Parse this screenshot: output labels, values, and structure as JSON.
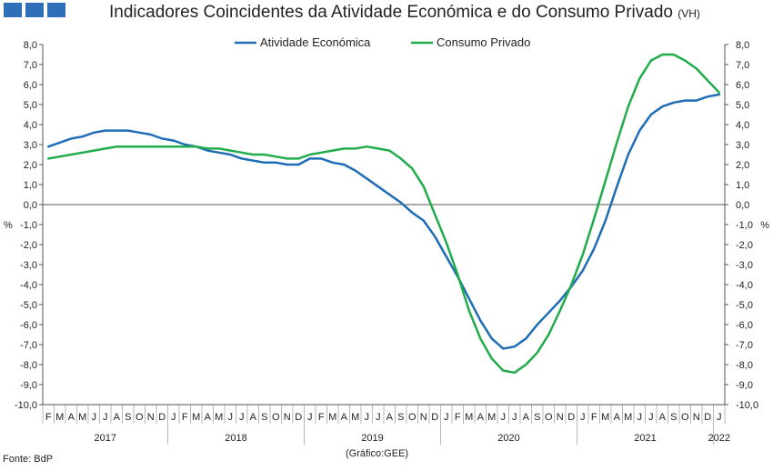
{
  "header": {
    "title": "Indicadores Coincidentes da Atividade Económica e do Consumo Privado",
    "unit": "(VH)",
    "logo_color": "#2f6fb7"
  },
  "footer": {
    "source": "Fonte: BdP",
    "credit": "(Gráfico:GEE)"
  },
  "chart_data": {
    "type": "line",
    "y_axis_unit_label": "%",
    "ylim": [
      -10,
      8
    ],
    "y_ticks": [
      "8,0",
      "7,0",
      "6,0",
      "5,0",
      "4,0",
      "3,0",
      "2,0",
      "1,0",
      "0,0",
      "-1,0",
      "-2,0",
      "-3,0",
      "-4,0",
      "-5,0",
      "-6,0",
      "-7,0",
      "-8,0",
      "-9,0",
      "-10,0"
    ],
    "x_months": [
      "F",
      "M",
      "A",
      "M",
      "J",
      "J",
      "A",
      "S",
      "O",
      "N",
      "D",
      "J",
      "F",
      "M",
      "A",
      "M",
      "J",
      "J",
      "A",
      "S",
      "O",
      "N",
      "D",
      "J",
      "F",
      "M",
      "A",
      "M",
      "J",
      "J",
      "A",
      "S",
      "O",
      "N",
      "D",
      "J",
      "F",
      "M",
      "A",
      "M",
      "J",
      "J",
      "A",
      "S",
      "O",
      "N",
      "D",
      "J",
      "F",
      "M",
      "A",
      "M",
      "J",
      "J",
      "A",
      "S",
      "O",
      "N",
      "D",
      "J"
    ],
    "x_years": [
      "2017",
      "2018",
      "2019",
      "2020",
      "2021",
      "2022"
    ],
    "x_range": [
      "2017-02",
      "2022-01"
    ],
    "grid": false,
    "legend_position": "top-center",
    "series": [
      {
        "name": "Atividade Económica",
        "color": "#1f6db5",
        "values": [
          2.9,
          3.1,
          3.3,
          3.4,
          3.6,
          3.7,
          3.7,
          3.7,
          3.6,
          3.5,
          3.3,
          3.2,
          3.0,
          2.9,
          2.7,
          2.6,
          2.5,
          2.3,
          2.2,
          2.1,
          2.1,
          2.0,
          2.0,
          2.3,
          2.3,
          2.1,
          2.0,
          1.7,
          1.3,
          0.9,
          0.5,
          0.1,
          -0.4,
          -0.8,
          -1.6,
          -2.6,
          -3.6,
          -4.7,
          -5.8,
          -6.7,
          -7.2,
          -7.1,
          -6.7,
          -6.0,
          -5.4,
          -4.8,
          -4.1,
          -3.3,
          -2.2,
          -0.8,
          0.9,
          2.5,
          3.7,
          4.5,
          4.9,
          5.1,
          5.2,
          5.2,
          5.4,
          5.5
        ]
      },
      {
        "name": "Consumo Privado",
        "color": "#21ac4b",
        "values": [
          2.3,
          2.4,
          2.5,
          2.6,
          2.7,
          2.8,
          2.9,
          2.9,
          2.9,
          2.9,
          2.9,
          2.9,
          2.9,
          2.9,
          2.8,
          2.8,
          2.7,
          2.6,
          2.5,
          2.5,
          2.4,
          2.3,
          2.3,
          2.5,
          2.6,
          2.7,
          2.8,
          2.8,
          2.9,
          2.8,
          2.7,
          2.3,
          1.8,
          0.9,
          -0.5,
          -1.9,
          -3.5,
          -5.3,
          -6.7,
          -7.7,
          -8.3,
          -8.4,
          -8.0,
          -7.4,
          -6.5,
          -5.3,
          -4.0,
          -2.5,
          -0.7,
          1.2,
          3.1,
          4.9,
          6.3,
          7.2,
          7.5,
          7.5,
          7.2,
          6.8,
          6.2,
          5.6
        ]
      }
    ]
  }
}
